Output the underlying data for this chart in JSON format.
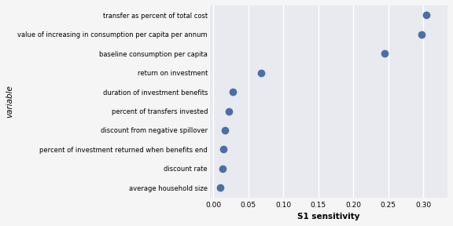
{
  "variables": [
    "transfer as percent of total cost",
    "value of increasing in consumption per capita per annum",
    "baseline consumption per capita",
    "return on investment",
    "duration of investment benefits",
    "percent of transfers invested",
    "discount from negative spillover",
    "percent of investment returned when benefits end",
    "discount rate",
    "average household size"
  ],
  "s1_values": [
    0.305,
    0.298,
    0.245,
    0.068,
    0.028,
    0.022,
    0.016,
    0.014,
    0.013,
    0.01
  ],
  "dot_color": "#4a6fa5",
  "bg_color": "#e8eaf0",
  "fig_bg_color": "#f5f5f5",
  "xlabel": "S1 sensitivity",
  "ylabel": "variable",
  "xlim": [
    -0.005,
    0.335
  ],
  "xticks": [
    0.0,
    0.05,
    0.1,
    0.15,
    0.2,
    0.25,
    0.3
  ],
  "xtick_labels": [
    "0.00",
    "0.05",
    "0.10",
    "0.15",
    "0.20",
    "0.25",
    "0.30"
  ],
  "markersize": 7,
  "grid_color": "#ffffff",
  "figsize": [
    5.76,
    2.88
  ],
  "dpi": 100,
  "label_fontsize": 6.0,
  "axis_label_fontsize": 7.5,
  "tick_fontsize": 6.5
}
